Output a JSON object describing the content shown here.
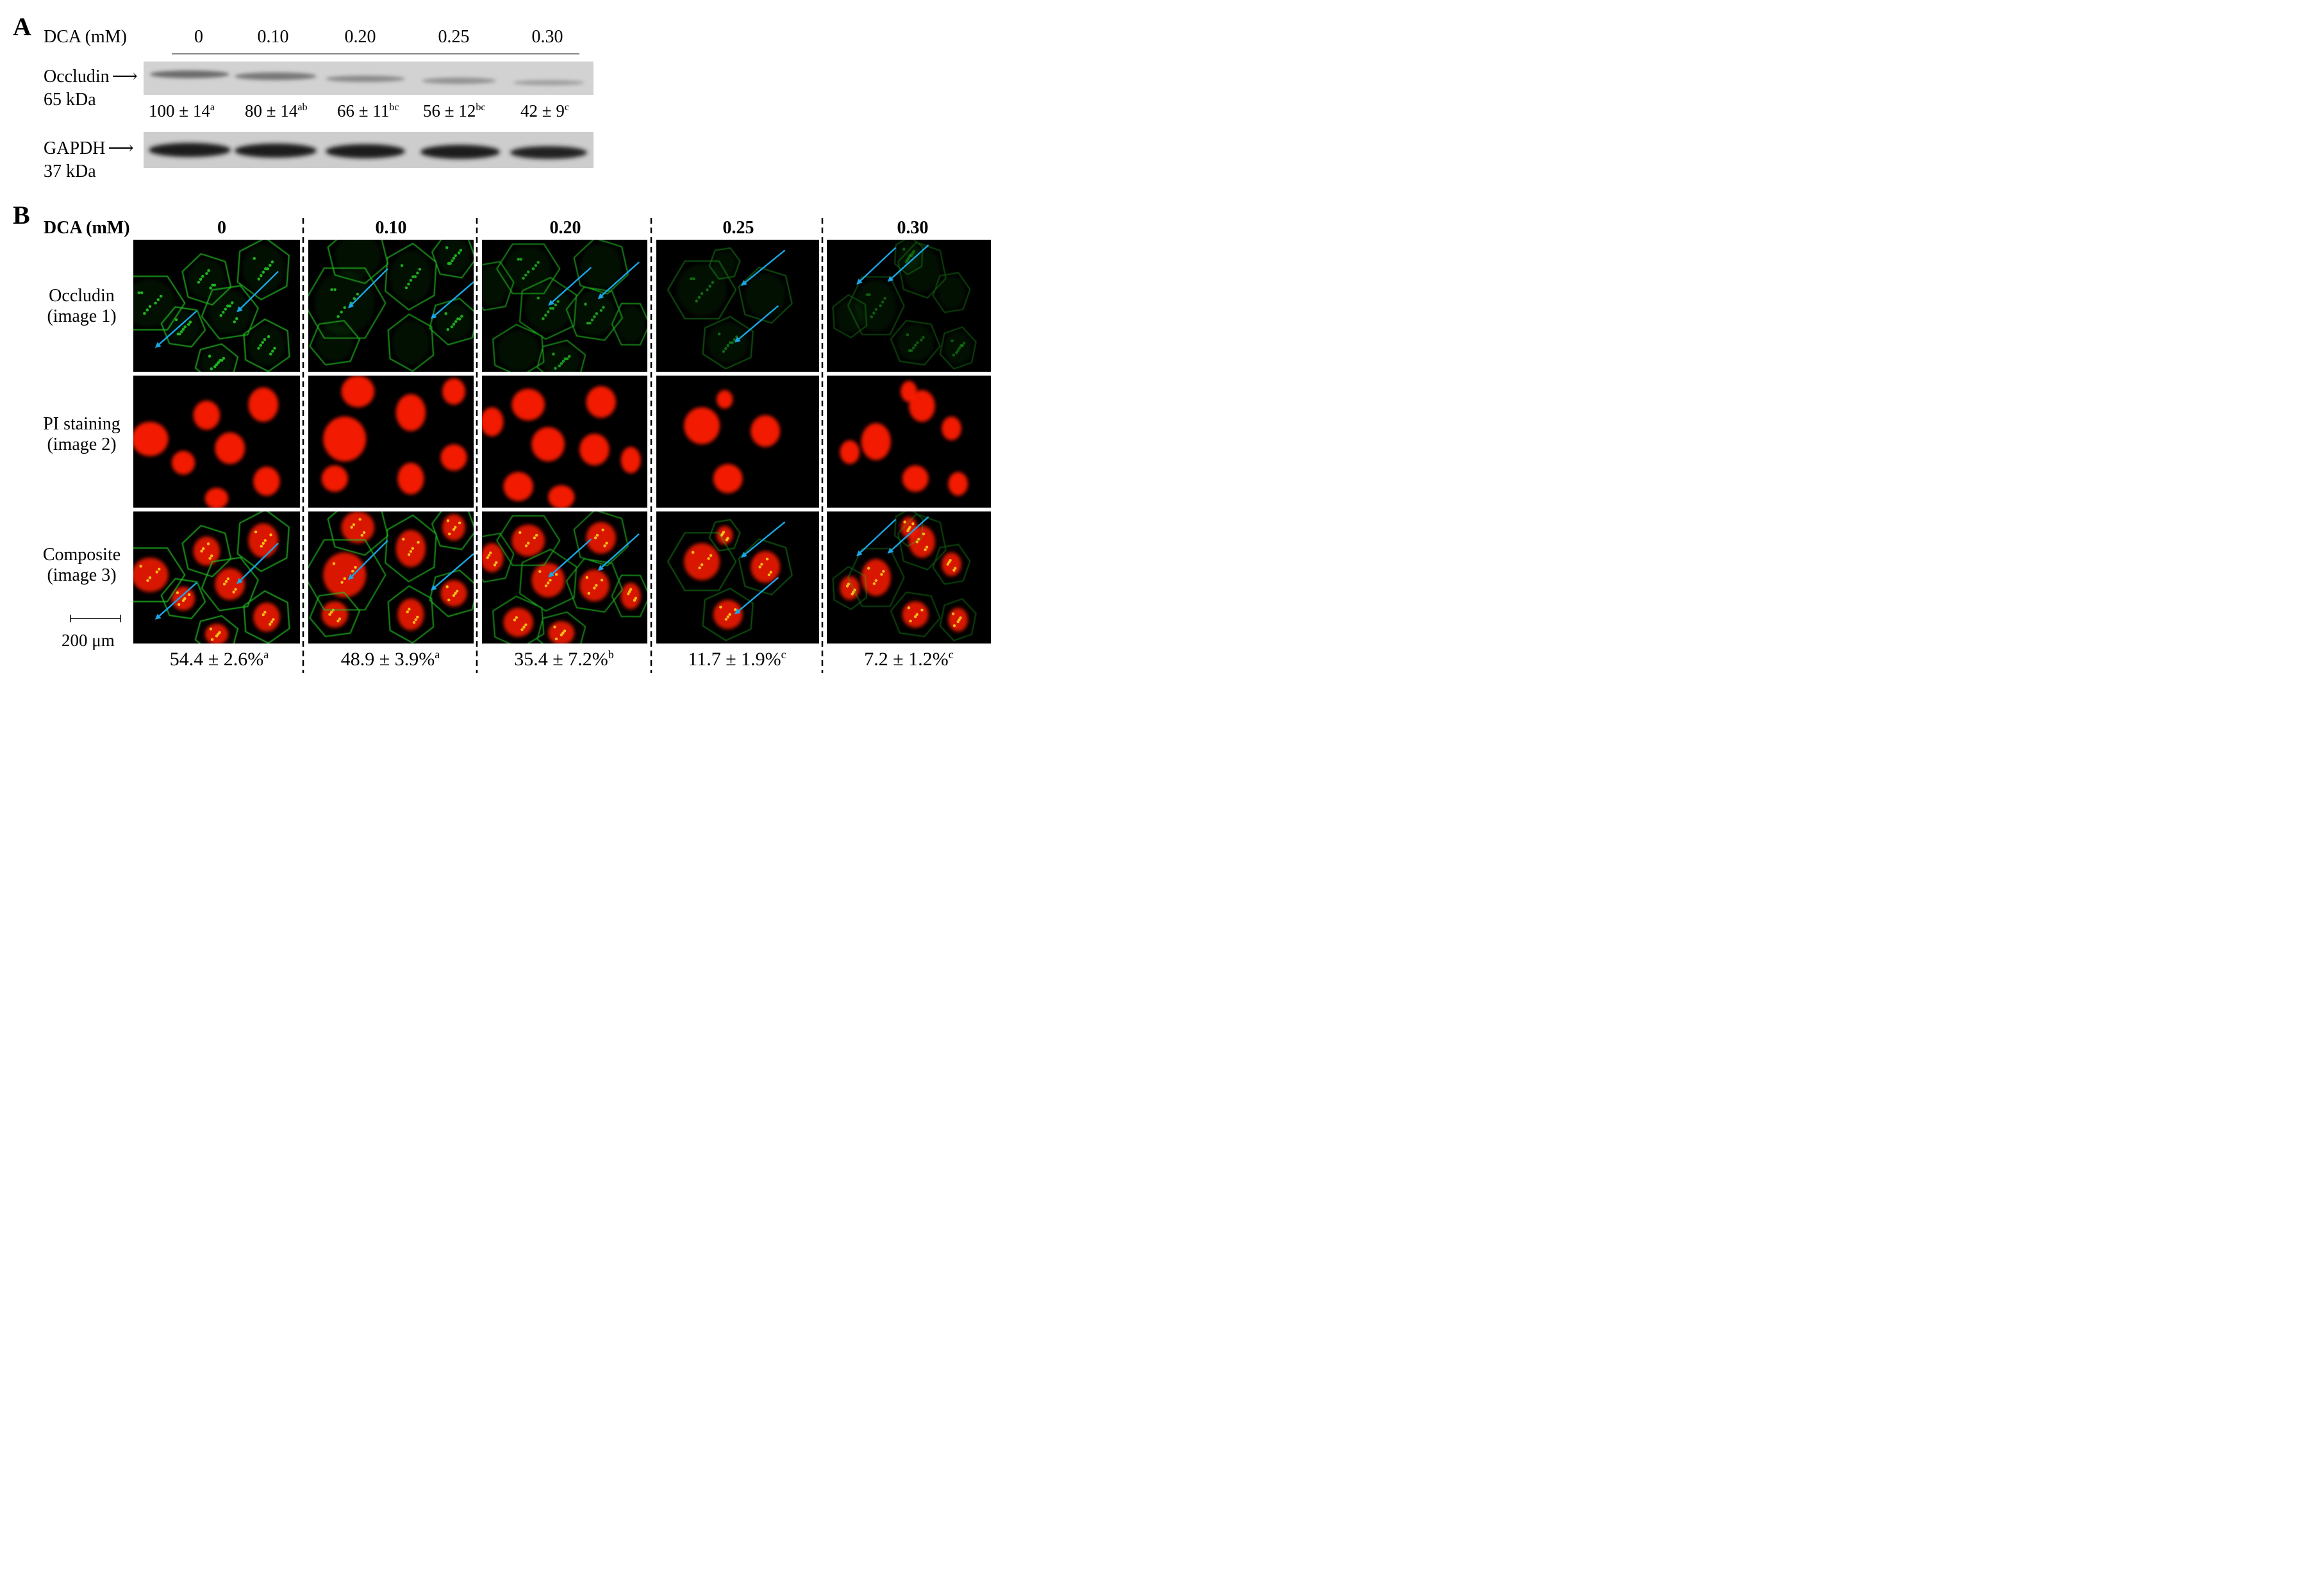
{
  "panel_a": {
    "letter": "A",
    "dca_label": "DCA (mM)",
    "concentrations": [
      "0",
      "0.10",
      "0.20",
      "0.25",
      "0.30"
    ],
    "occludin": {
      "label": "Occludin",
      "kda": "65 kDa"
    },
    "gapdh": {
      "label": "GAPDH",
      "kda": "37 kDa"
    },
    "quant": [
      {
        "value": "100 ± 14",
        "sup": "a"
      },
      {
        "value": "80 ± 14",
        "sup": "ab"
      },
      {
        "value": "66 ± 11",
        "sup": "bc"
      },
      {
        "value": "56 ± 12",
        "sup": "bc"
      },
      {
        "value": "42 ± 9",
        "sup": "c"
      }
    ]
  },
  "panel_b": {
    "letter": "B",
    "dca_label": "DCA (mM)",
    "concentrations": [
      "0",
      "0.10",
      "0.20",
      "0.25",
      "0.30"
    ],
    "rows": [
      {
        "line1": "Occludin",
        "line2": "(image 1)"
      },
      {
        "line1": "PI staining",
        "line2": "(image 2)"
      },
      {
        "line1": "Composite",
        "line2": "(image 3)"
      }
    ],
    "scale_bar": "200 μm",
    "percentages": [
      {
        "value": "54.4 ± 2.6%",
        "sup": "a"
      },
      {
        "value": "48.9 ± 3.9%",
        "sup": "a"
      },
      {
        "value": "35.4 ± 7.2%",
        "sup": "b"
      },
      {
        "value": "11.7 ± 1.9%",
        "sup": "c"
      },
      {
        "value": "7.2 ± 1.2%",
        "sup": "c"
      }
    ],
    "colors": {
      "occludin": "#22c422",
      "pi": "#ff1a00",
      "arrow": "#1aa7e6"
    }
  }
}
